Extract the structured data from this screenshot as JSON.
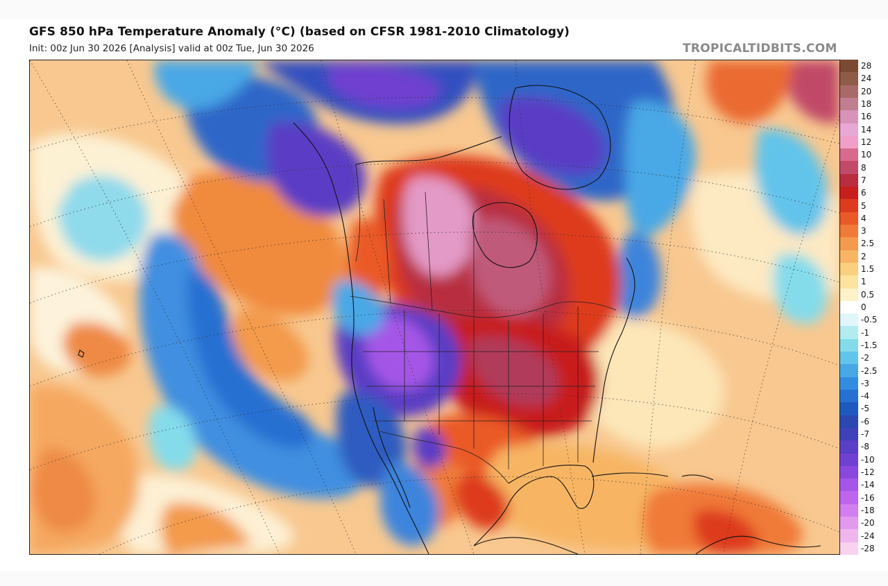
{
  "header": {
    "title": "GFS 850 hPa Temperature Anomaly (°C) (based on CFSR 1981-2010 Climatology)",
    "subtitle": "Init: 00z Jun 30 2026   [Analysis]   valid at 00z Tue, Jun 30 2026",
    "watermark": "TROPICALTIDBITS.COM"
  },
  "colors": {
    "frame_background": "#ffffff",
    "page_background": "#fafafa"
  },
  "legend": {
    "units": "°C",
    "levels": [
      {
        "label": "28",
        "color": "#7a4a33"
      },
      {
        "label": "24",
        "color": "#8f5c48"
      },
      {
        "label": "20",
        "color": "#a86a68"
      },
      {
        "label": "18",
        "color": "#c07e90"
      },
      {
        "label": "16",
        "color": "#d894b8"
      },
      {
        "label": "14",
        "color": "#e8a8d6"
      },
      {
        "label": "12",
        "color": "#f0a0c8"
      },
      {
        "label": "10",
        "color": "#d86a8e"
      },
      {
        "label": "8",
        "color": "#c04a68"
      },
      {
        "label": "7",
        "color": "#b82d40"
      },
      {
        "label": "6",
        "color": "#c81e1e"
      },
      {
        "label": "5",
        "color": "#dd3a1e"
      },
      {
        "label": "4",
        "color": "#ea5a28"
      },
      {
        "label": "3",
        "color": "#f07a38"
      },
      {
        "label": "2.5",
        "color": "#f39a4c"
      },
      {
        "label": "2",
        "color": "#f7b564"
      },
      {
        "label": "1.5",
        "color": "#fad07e"
      },
      {
        "label": "1",
        "color": "#fce39e"
      },
      {
        "label": "0.5",
        "color": "#fdf2c8"
      },
      {
        "label": "0",
        "color": "#ffffff"
      },
      {
        "label": "-0.5",
        "color": "#e0f6fa"
      },
      {
        "label": "-1",
        "color": "#b2ecf2"
      },
      {
        "label": "-1.5",
        "color": "#84dceb"
      },
      {
        "label": "-2",
        "color": "#62c4ea"
      },
      {
        "label": "-2.5",
        "color": "#48a8e6"
      },
      {
        "label": "-3",
        "color": "#348ce0"
      },
      {
        "label": "-4",
        "color": "#2670d2"
      },
      {
        "label": "-5",
        "color": "#1c5abe"
      },
      {
        "label": "-6",
        "color": "#2a48b0"
      },
      {
        "label": "-7",
        "color": "#4040b8"
      },
      {
        "label": "-8",
        "color": "#5a3ec4"
      },
      {
        "label": "-10",
        "color": "#7040d0"
      },
      {
        "label": "-12",
        "color": "#8a48dc"
      },
      {
        "label": "-14",
        "color": "#a456e6"
      },
      {
        "label": "-16",
        "color": "#bc66ee"
      },
      {
        "label": "-18",
        "color": "#d07ef0"
      },
      {
        "label": "-20",
        "color": "#e29aee"
      },
      {
        "label": "-24",
        "color": "#efb6ee"
      },
      {
        "label": "-28",
        "color": "#f8d2ee"
      }
    ]
  }
}
